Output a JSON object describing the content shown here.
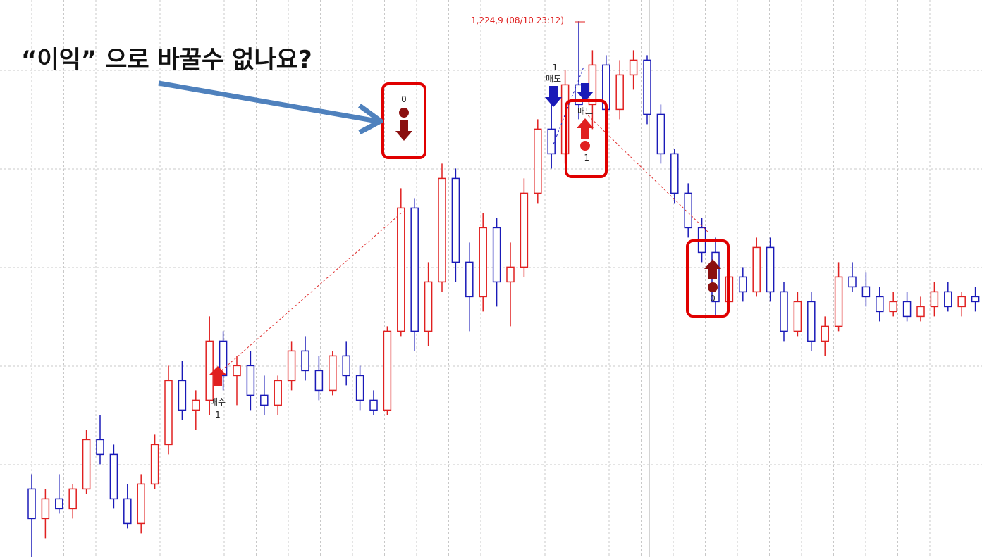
{
  "chart_data": {
    "type": "candlestick",
    "annotation": "“이익” 으로 바꿀수 없나요?",
    "high_label": "1,224,9 (08/10 23:12)",
    "signals": {
      "buy": "매수",
      "buy_qty": "1",
      "sell_qty": "-1",
      "sell": "매도",
      "exit_qty": "0",
      "sell2": "매도",
      "sell2_qty": "-1",
      "exit2_qty": "0"
    },
    "up_color": "#e02020",
    "down_color": "#1a1ab8",
    "ylim": [
      1116.2,
      1229.2
    ],
    "open": [
      1130,
      1124,
      1128,
      1126,
      1130,
      1140,
      1137,
      1128,
      1123,
      1131,
      1139,
      1152,
      1146,
      1148,
      1160,
      1153,
      1155,
      1149,
      1147,
      1152,
      1158,
      1154,
      1150,
      1157,
      1153,
      1148,
      1146,
      1162,
      1187,
      1162,
      1172,
      1193,
      1176,
      1169,
      1183,
      1172,
      1175,
      1190,
      1203,
      1198,
      1212,
      1208,
      1216,
      1207,
      1214,
      1217,
      1206,
      1198,
      1190,
      1183,
      1178,
      1168,
      1173,
      1170,
      1179,
      1170,
      1162,
      1168,
      1160,
      1163,
      1173,
      1171,
      1169,
      1166,
      1168,
      1165,
      1167,
      1170,
      1167,
      1169
    ],
    "high": [
      1133,
      1130,
      1133,
      1131,
      1142,
      1145,
      1139,
      1131,
      1133,
      1141,
      1155,
      1156,
      1150,
      1165,
      1162,
      1157,
      1158,
      1153,
      1153,
      1160,
      1161,
      1157,
      1158,
      1160,
      1155,
      1150,
      1163,
      1191,
      1189,
      1176,
      1196,
      1195,
      1180,
      1186,
      1185,
      1180,
      1193,
      1205,
      1210,
      1215,
      1224.9,
      1219,
      1218,
      1217,
      1219,
      1218,
      1208,
      1199,
      1192,
      1185,
      1181,
      1175,
      1175,
      1181,
      1181,
      1172,
      1170,
      1170,
      1165,
      1176,
      1176,
      1174,
      1171,
      1170,
      1170,
      1169,
      1172,
      1172,
      1170,
      1171
    ],
    "low": [
      1116,
      1120,
      1125,
      1124,
      1129,
      1135,
      1126,
      1122,
      1121,
      1130,
      1137,
      1144,
      1142,
      1145,
      1150,
      1147,
      1146,
      1145,
      1145,
      1150,
      1152,
      1148,
      1149,
      1151,
      1146,
      1145,
      1145,
      1161,
      1158,
      1159,
      1170,
      1172,
      1162,
      1166,
      1167,
      1163,
      1173,
      1188,
      1195,
      1196,
      1205,
      1203,
      1204,
      1205,
      1211,
      1204,
      1196,
      1188,
      1181,
      1176,
      1165,
      1166,
      1168,
      1169,
      1168,
      1160,
      1161,
      1158,
      1157,
      1162,
      1170,
      1167,
      1164,
      1165,
      1164,
      1164,
      1165,
      1166,
      1165,
      1166
    ],
    "close": [
      1124,
      1128,
      1126,
      1130,
      1140,
      1137,
      1128,
      1123,
      1131,
      1139,
      1152,
      1146,
      1148,
      1160,
      1153,
      1155,
      1149,
      1147,
      1152,
      1158,
      1154,
      1150,
      1157,
      1153,
      1148,
      1146,
      1162,
      1187,
      1162,
      1172,
      1193,
      1176,
      1169,
      1183,
      1172,
      1175,
      1190,
      1203,
      1198,
      1212,
      1208,
      1216,
      1207,
      1214,
      1217,
      1206,
      1198,
      1190,
      1183,
      1178,
      1168,
      1173,
      1170,
      1179,
      1170,
      1162,
      1168,
      1160,
      1163,
      1173,
      1171,
      1169,
      1166,
      1168,
      1165,
      1167,
      1170,
      1167,
      1169,
      1168
    ]
  }
}
